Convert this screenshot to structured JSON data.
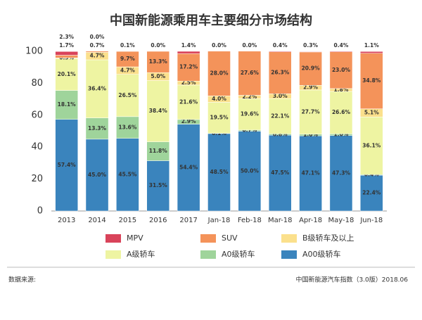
{
  "chart_data": {
    "type": "stacked_bar",
    "title": "中国新能源乘用车主要细分市场结构",
    "categories": [
      "2013",
      "2014",
      "2015",
      "2016",
      "2017",
      "Jan-18",
      "Feb-18",
      "Mar-18",
      "Apr-18",
      "May-18",
      "Jun-18"
    ],
    "series": [
      {
        "name": "MPV",
        "color": "#d9435a",
        "values": [
          2.3,
          0.0,
          0.1,
          0.0,
          1.4,
          0.0,
          0.0,
          0.4,
          0.3,
          0.4,
          1.1
        ],
        "value_labels": [
          "2.3%",
          "0.0%",
          "0.1%",
          "0.0%",
          "1.4%",
          "0.0%",
          "0.0%",
          "0.4%",
          "0.3%",
          "0.4%",
          "1.1%"
        ]
      },
      {
        "name": "SUV",
        "color": "#f4935a",
        "values": [
          1.7,
          0.7,
          9.7,
          13.3,
          17.2,
          28.0,
          27.6,
          26.3,
          20.9,
          23.0,
          34.8
        ],
        "value_labels": [
          "1.7%",
          "0.7%",
          "9.7%",
          "13.3%",
          "17.2%",
          "28.0%",
          "27.6%",
          "26.3%",
          "20.9%",
          "23.0%",
          "34.8%"
        ]
      },
      {
        "name": "B级轿车及以上",
        "color": "#fbe08c",
        "values": [
          0.3,
          4.7,
          4.7,
          5.0,
          2.5,
          4.0,
          2.2,
          3.0,
          2.9,
          1.8,
          5.1
        ],
        "value_labels": [
          "0.3%",
          "4.7%",
          "4.7%",
          "5.0%",
          "2.5%",
          "4.0%",
          "2.2%",
          "3.0%",
          "2.9%",
          "1.8%",
          "5.1%"
        ]
      },
      {
        "name": "A级轿车",
        "color": "#eef4a2",
        "values": [
          20.1,
          36.4,
          26.5,
          38.4,
          21.6,
          19.5,
          19.6,
          22.1,
          27.7,
          26.6,
          36.1
        ],
        "value_labels": [
          "20.1%",
          "36.4%",
          "26.5%",
          "38.4%",
          "21.6%",
          "19.5%",
          "19.6%",
          "22.1%",
          "27.7%",
          "26.6%",
          "36.1%"
        ]
      },
      {
        "name": "A0级轿车",
        "color": "#9fd49b",
        "values": [
          18.1,
          13.3,
          13.6,
          11.8,
          2.9,
          0.1,
          0.7,
          0.8,
          1.0,
          1.0,
          0.4
        ],
        "value_labels": [
          "18.1%",
          "13.3%",
          "13.6%",
          "11.8%",
          "2.9%",
          "0.1%",
          "0.7%",
          "0.8%",
          "1.0%",
          "1.0%",
          "0.4%"
        ]
      },
      {
        "name": "A00级轿车",
        "color": "#3a84bd",
        "values": [
          57.4,
          45.0,
          45.5,
          31.5,
          54.4,
          48.5,
          50.0,
          47.5,
          47.1,
          47.3,
          22.4
        ],
        "value_labels": [
          "57.4%",
          "45.0%",
          "45.5%",
          "31.5%",
          "54.4%",
          "48.5%",
          "50.0%",
          "47.5%",
          "47.1%",
          "47.3%",
          "22.4%"
        ]
      }
    ],
    "ylim": [
      0,
      100
    ],
    "yticks": [
      0,
      20,
      40,
      60,
      80,
      100
    ],
    "grid": false,
    "source_label": "数据来源:",
    "footnote": "中国新能源汽车指数（3.0版）2018.06"
  }
}
